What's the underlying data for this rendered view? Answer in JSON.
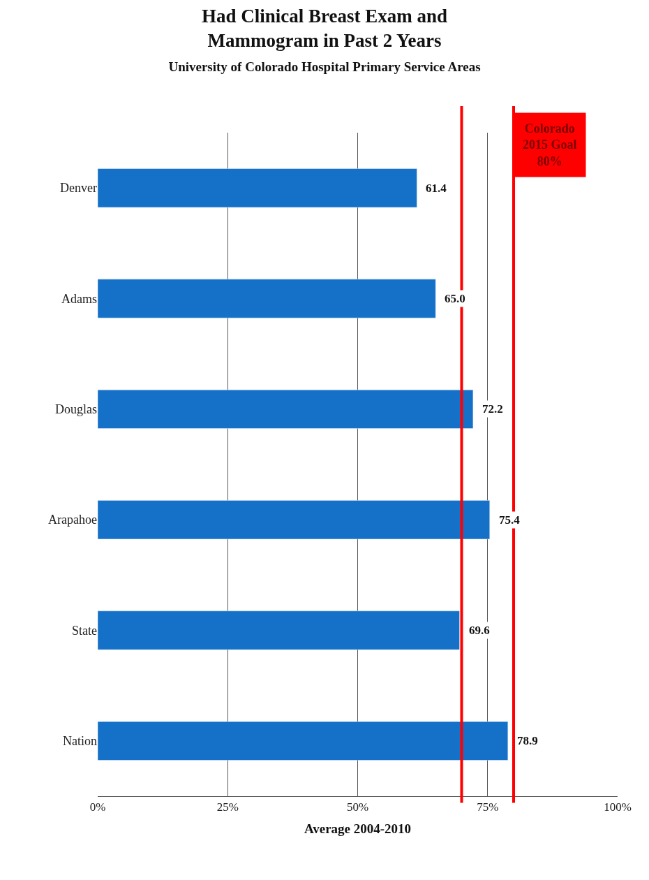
{
  "chart_data": {
    "type": "bar",
    "orientation": "horizontal",
    "title": "Had Clinical Breast Exam and\nMammogram in Past 2 Years",
    "subtitle": "University of Colorado Hospital Primary Service Areas",
    "xlabel": "Average 2004-2010",
    "categories": [
      "Denver",
      "Adams",
      "Douglas",
      "Arapahoe",
      "State",
      "Nation"
    ],
    "values": [
      61.4,
      65.0,
      72.2,
      75.4,
      69.6,
      78.9
    ],
    "value_labels": [
      "61.4",
      "65.0",
      "72.2",
      "75.4",
      "69.6",
      "78.9"
    ],
    "color": "#1570c8",
    "xlim": [
      0,
      100
    ],
    "xticks": [
      {
        "value": 0,
        "label": "0%"
      },
      {
        "value": 25,
        "label": "25%"
      },
      {
        "value": 50,
        "label": "50%"
      },
      {
        "value": 75,
        "label": "75%"
      },
      {
        "value": 100,
        "label": "100%"
      }
    ],
    "ref_lines": [
      {
        "axis": "x",
        "value": 70,
        "color": "#ff0000"
      },
      {
        "axis": "x",
        "value": 80,
        "color": "#ff0000",
        "label": "Colorado\n2015 Goal\n80%"
      }
    ],
    "grid": "x"
  }
}
